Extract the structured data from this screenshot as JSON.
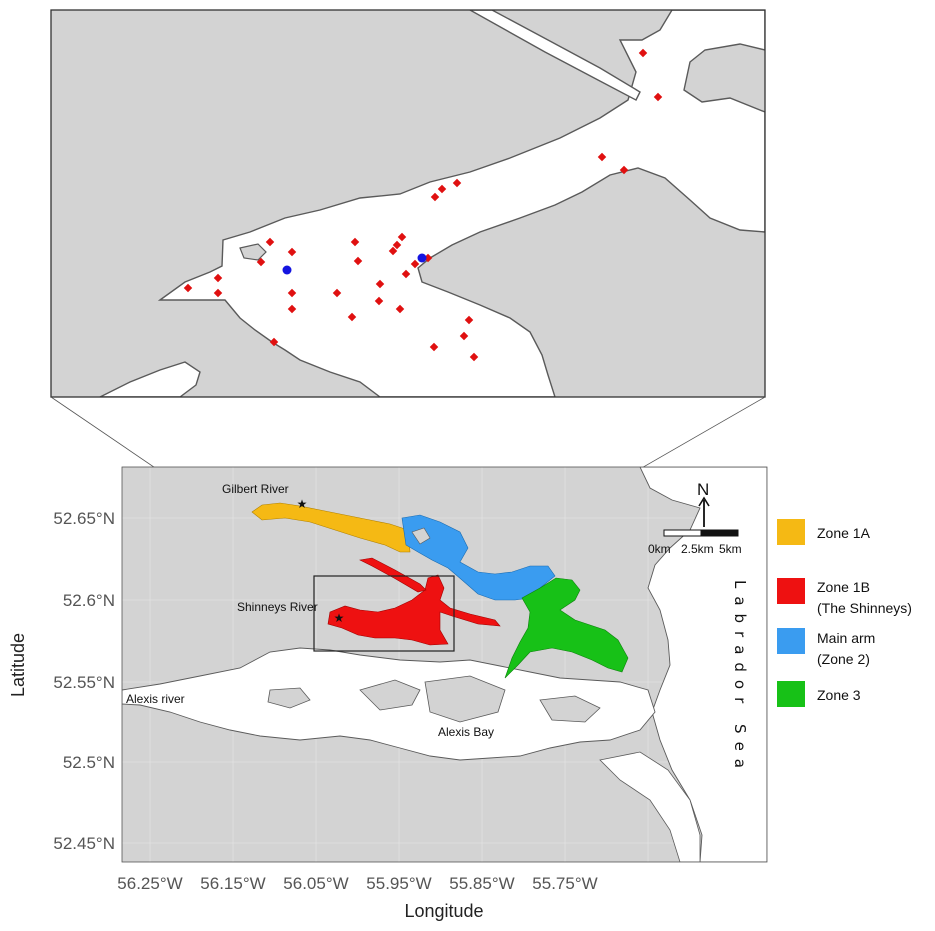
{
  "axes": {
    "x_title": "Longitude",
    "y_title": "Latitude",
    "x_ticks": [
      "56.25°W",
      "56.15°W",
      "56.05°W",
      "55.95°W",
      "55.85°W",
      "55.75°W"
    ],
    "y_ticks": [
      "52.65°N",
      "52.6°N",
      "52.55°N",
      "52.5°N",
      "52.45°N"
    ]
  },
  "places": {
    "gilbert_river": "Gilbert River",
    "shinneys_river": "Shinneys River",
    "alexis_river": "Alexis river",
    "alexis_bay": "Alexis Bay",
    "labrador_sea": "Labrador Sea"
  },
  "scale_bar": {
    "labels": [
      "0km",
      "2.5km",
      "5km"
    ]
  },
  "north_arrow": {
    "label": "N"
  },
  "legend": {
    "items": [
      {
        "key": "zone_1a",
        "lines": [
          "Zone 1A"
        ],
        "color": "#F5B914"
      },
      {
        "key": "zone_1b",
        "lines": [
          "Zone 1B",
          "(The Shinneys)"
        ],
        "color": "#EE1111"
      },
      {
        "key": "main_arm",
        "lines": [
          "Main arm",
          "(Zone 2)"
        ],
        "color": "#3A9CF0"
      },
      {
        "key": "zone_3",
        "lines": [
          "Zone 3"
        ],
        "color": "#17C117"
      }
    ]
  },
  "colors": {
    "land": "#D3D3D3",
    "water": "#FFFFFF",
    "coast": "#5A5A5A",
    "site_red": "#E01010",
    "site_blue": "#1515E0"
  },
  "inset": {
    "site_legend": "red = sampling sites, blue = special sites (no printed legend)"
  }
}
